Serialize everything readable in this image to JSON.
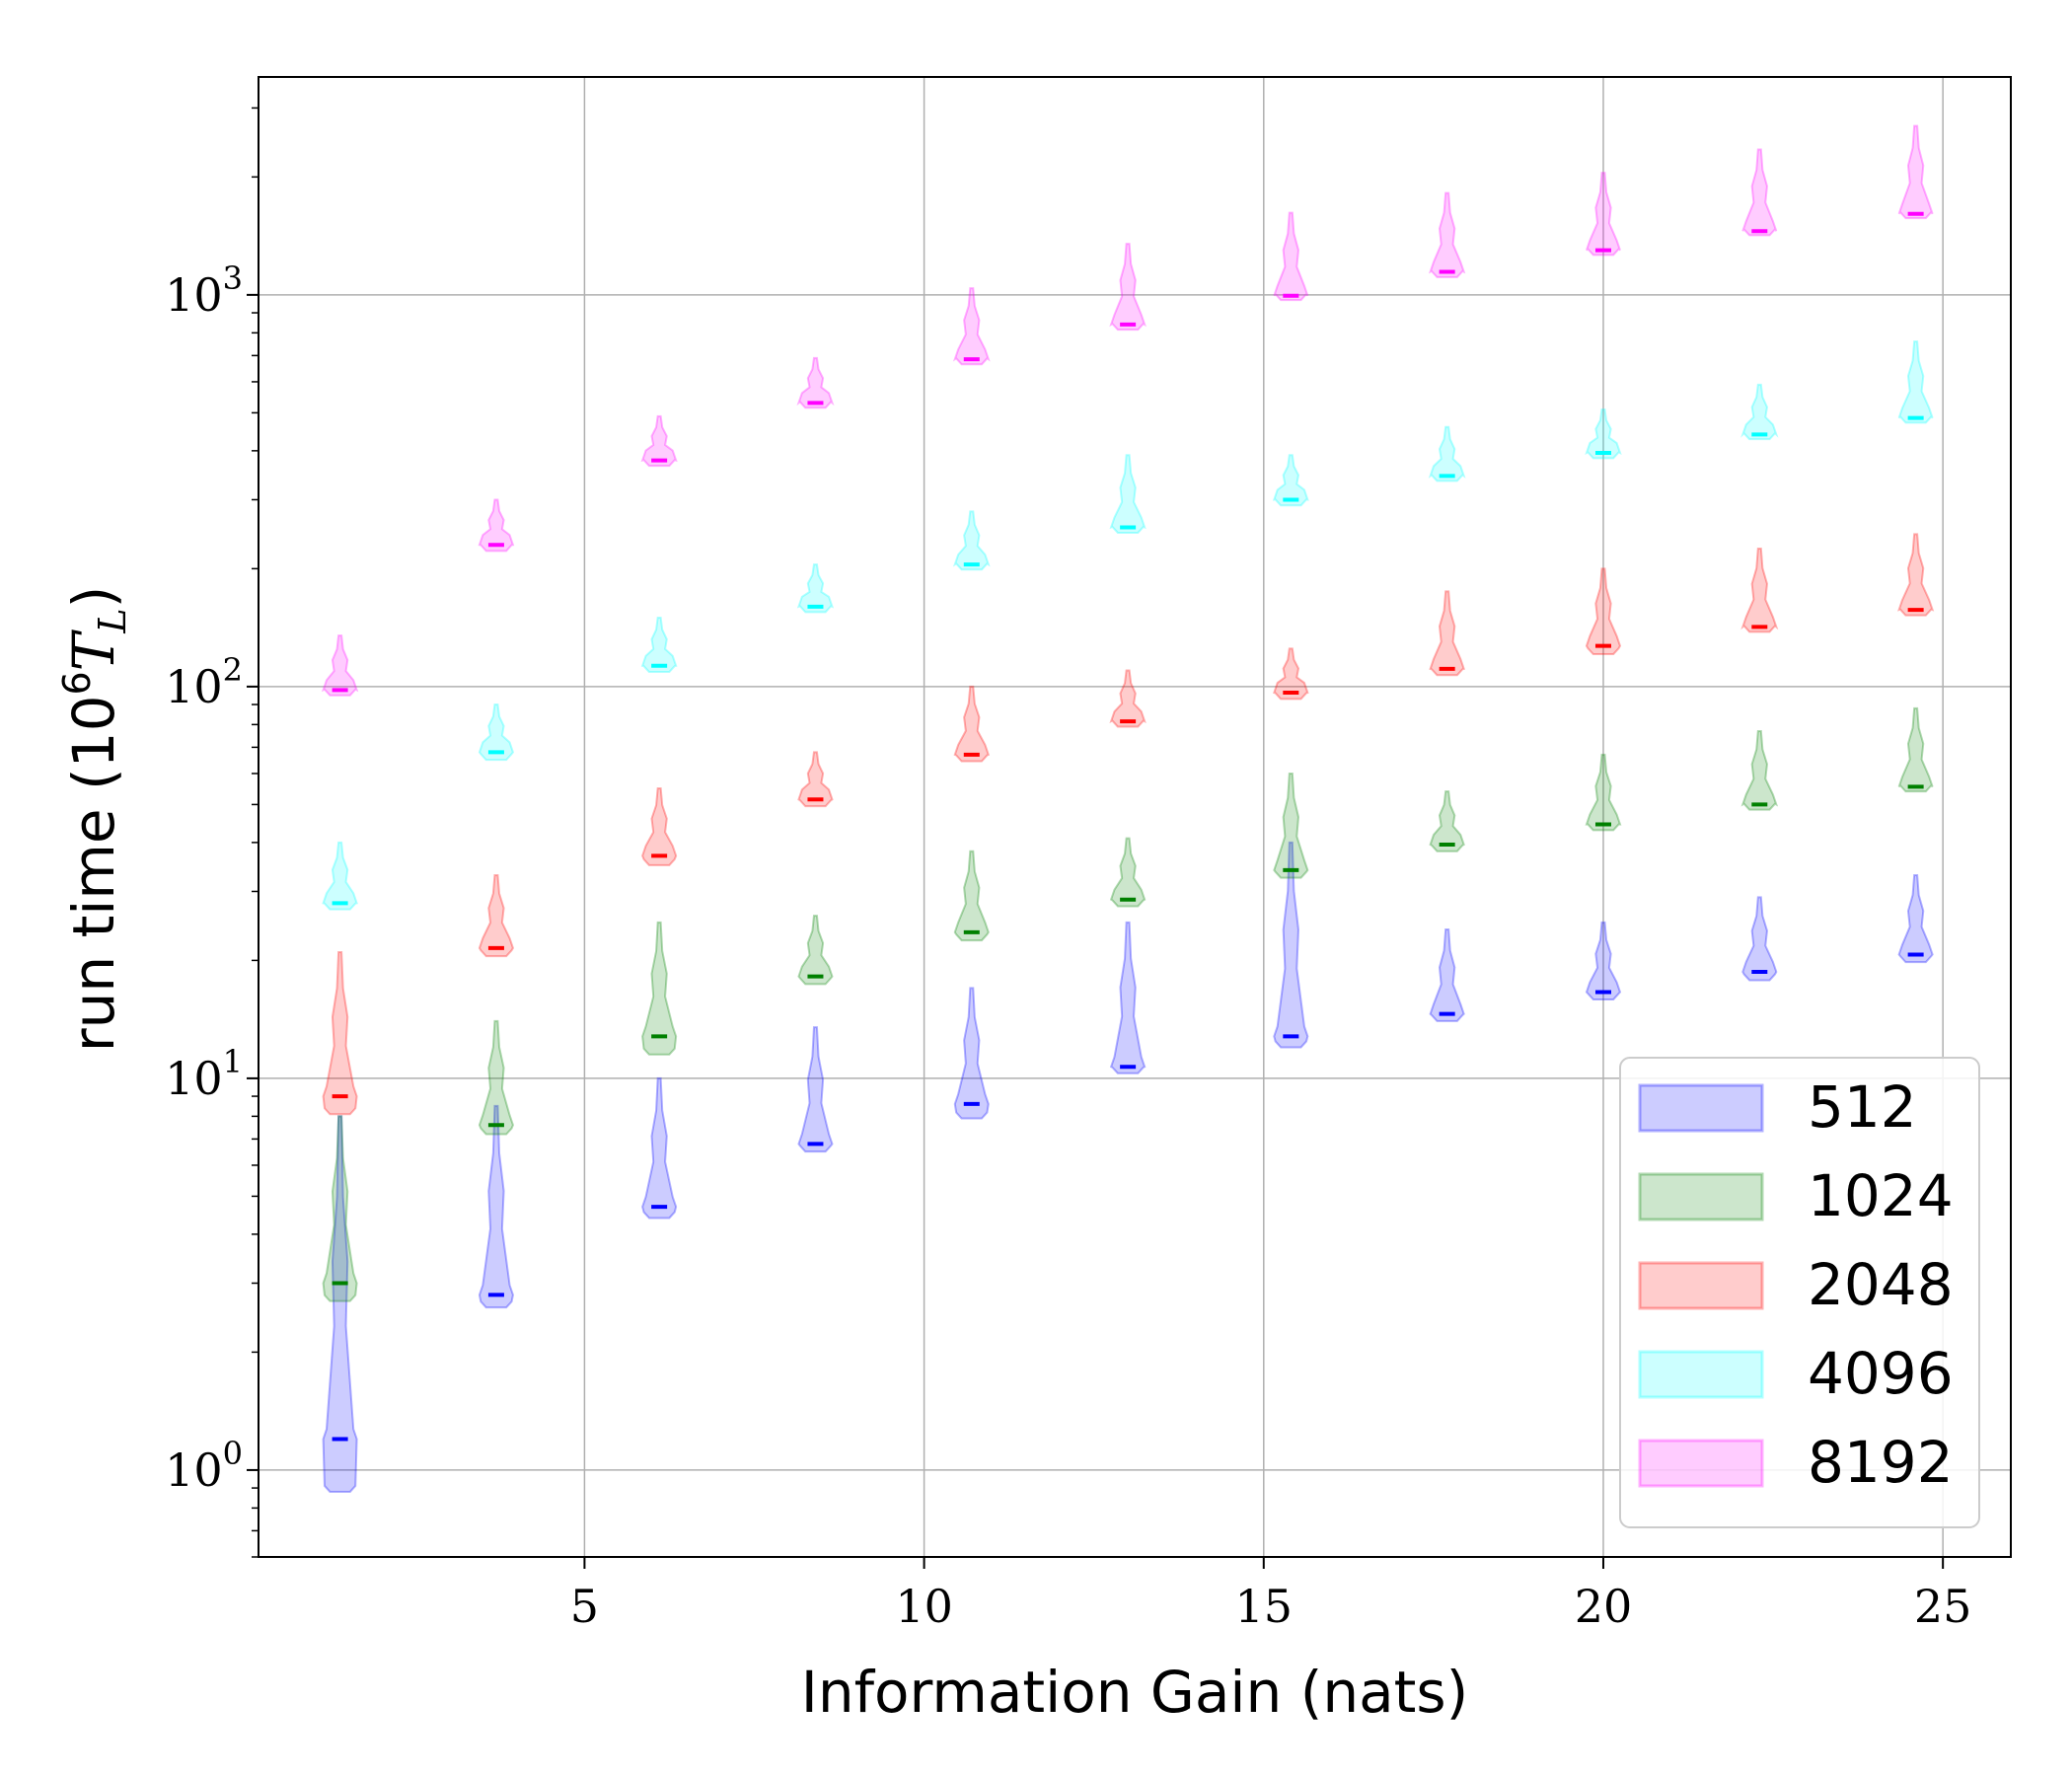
{
  "chart_data": {
    "type": "violin",
    "xlabel": "Information Gain (nats)",
    "ylabel": {
      "prefix": "run time (10",
      "exp": "6",
      "symbol": "T",
      "sub": "L",
      "suffix": ")"
    },
    "xlim": [
      0.2,
      26.0
    ],
    "ylim": [
      0.6,
      3600
    ],
    "yscale": "log",
    "xticks": [
      5,
      10,
      15,
      20,
      25
    ],
    "yticks": [
      {
        "value": 1,
        "base": "10",
        "exp": "0"
      },
      {
        "value": 10,
        "base": "10",
        "exp": "1"
      },
      {
        "value": 100,
        "base": "10",
        "exp": "2"
      },
      {
        "value": 1000,
        "base": "10",
        "exp": "3"
      }
    ],
    "grid": true,
    "legend_position": "bottom-right",
    "x": [
      1.4,
      3.7,
      6.1,
      8.4,
      10.7,
      13.0,
      15.4,
      17.7,
      20.0,
      22.3,
      24.6
    ],
    "series": [
      {
        "name": "512",
        "color": "#0000ff",
        "median": [
          1.2,
          2.8,
          4.7,
          6.8,
          8.6,
          10.7,
          12.8,
          14.6,
          16.6,
          18.7,
          20.7
        ],
        "low": [
          0.88,
          2.6,
          4.4,
          6.5,
          7.9,
          10.3,
          12.0,
          14.0,
          15.9,
          17.8,
          19.8
        ],
        "high": [
          8.0,
          8.5,
          10.0,
          13.5,
          17.0,
          25.0,
          40.0,
          24.0,
          25.0,
          29.0,
          33.0
        ]
      },
      {
        "name": "1024",
        "color": "#008000",
        "median": [
          3.0,
          7.6,
          12.8,
          18.2,
          23.6,
          28.6,
          34.0,
          39.5,
          44.5,
          50.0,
          55.5
        ],
        "low": [
          2.7,
          7.2,
          11.5,
          17.4,
          22.5,
          27.5,
          32.5,
          38.0,
          43.0,
          48.5,
          54.0
        ],
        "high": [
          8.0,
          14.0,
          25.0,
          26.0,
          38.0,
          41.0,
          60.0,
          54.0,
          67.0,
          77.0,
          88.0
        ]
      },
      {
        "name": "2048",
        "color": "#ff0000",
        "median": [
          9.0,
          21.5,
          37.0,
          51.5,
          67.0,
          81.5,
          96.5,
          111.0,
          127.0,
          142.0,
          157.0
        ],
        "low": [
          8.1,
          20.5,
          35.0,
          49.5,
          64.5,
          79.0,
          93.0,
          107.0,
          121.0,
          138.0,
          152.0
        ],
        "high": [
          21.0,
          33.0,
          55.0,
          68.0,
          100.0,
          110.0,
          125.0,
          175.0,
          200.0,
          225.0,
          245.0
        ]
      },
      {
        "name": "4096",
        "color": "#00ffff",
        "median": [
          28.0,
          68.0,
          113.0,
          160.0,
          205.0,
          255.0,
          300.0,
          345.0,
          395.0,
          440.0,
          485.0
        ],
        "low": [
          27.0,
          65.0,
          109.0,
          155.0,
          199.0,
          247.0,
          290.0,
          335.0,
          383.0,
          428.0,
          472.0
        ],
        "high": [
          40.0,
          90.0,
          150.0,
          205.0,
          280.0,
          390.0,
          390.0,
          460.0,
          510.0,
          590.0,
          760.0
        ]
      },
      {
        "name": "8192",
        "color": "#ff00ff",
        "median": [
          98.0,
          230.0,
          378.0,
          530.0,
          685.0,
          840.0,
          995.0,
          1145.0,
          1300.0,
          1455.0,
          1610.0
        ],
        "low": [
          95.0,
          222.0,
          366.0,
          515.0,
          665.0,
          815.0,
          970.0,
          1110.0,
          1265.0,
          1420.0,
          1570.0
        ],
        "high": [
          135.0,
          300.0,
          490.0,
          690.0,
          1040.0,
          1350.0,
          1620.0,
          1820.0,
          2050.0,
          2350.0,
          2700.0
        ]
      }
    ]
  }
}
